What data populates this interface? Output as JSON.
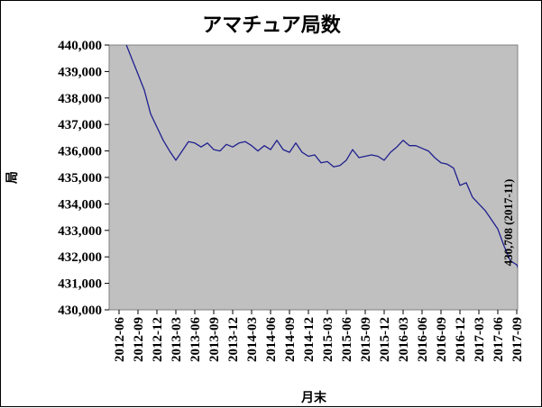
{
  "chart_data": {
    "type": "line",
    "title": "アマチュア局数",
    "xlabel": "月末",
    "ylabel": "局",
    "ylim": [
      430000,
      440000
    ],
    "yticks": [
      430000,
      431000,
      432000,
      433000,
      434000,
      435000,
      436000,
      437000,
      438000,
      439000,
      440000
    ],
    "ytick_labels": [
      "430,000",
      "431,000",
      "432,000",
      "433,000",
      "434,000",
      "435,000",
      "436,000",
      "437,000",
      "438,000",
      "439,000",
      "440,000"
    ],
    "xtick_labels": [
      "2012-06",
      "2012-09",
      "2012-12",
      "2013-03",
      "2013-06",
      "2013-09",
      "2013-12",
      "2014-03",
      "2014-06",
      "2014-09",
      "2014-12",
      "2015-03",
      "2015-06",
      "2015-09",
      "2015-12",
      "2016-03",
      "2016-06",
      "2016-09",
      "2016-12",
      "2017-03",
      "2017-06",
      "2017-09"
    ],
    "grid": false,
    "legend": "none",
    "plot_background": "#c0c0c0",
    "line_color": "#1f1f8f",
    "annotation": "430,708 (2017-11)",
    "series": [
      {
        "x": [
          "2012-06",
          "2012-07",
          "2012-08",
          "2012-09",
          "2012-10",
          "2012-11",
          "2012-12",
          "2013-01",
          "2013-02",
          "2013-03",
          "2013-04",
          "2013-05",
          "2013-06",
          "2013-07",
          "2013-08",
          "2013-09",
          "2013-10",
          "2013-11",
          "2013-12",
          "2014-01",
          "2014-02",
          "2014-03",
          "2014-04",
          "2014-05",
          "2014-06",
          "2014-07",
          "2014-08",
          "2014-09",
          "2014-10",
          "2014-11",
          "2014-12",
          "2015-01",
          "2015-02",
          "2015-03",
          "2015-04",
          "2015-05",
          "2015-06",
          "2015-07",
          "2015-08",
          "2015-09",
          "2015-10",
          "2015-11",
          "2015-12",
          "2016-01",
          "2016-02",
          "2016-03",
          "2016-04",
          "2016-05",
          "2016-06",
          "2016-07",
          "2016-08",
          "2016-09",
          "2016-10",
          "2016-11",
          "2016-12",
          "2017-01",
          "2017-02",
          "2017-03",
          "2017-04",
          "2017-05",
          "2017-06",
          "2017-07",
          "2017-08",
          "2017-09",
          "2017-10",
          "2017-11"
        ],
        "values": [
          440500,
          440100,
          439500,
          438900,
          438300,
          437400,
          436900,
          436400,
          436000,
          435650,
          436000,
          436350,
          436300,
          436150,
          436300,
          436050,
          436000,
          436250,
          436150,
          436300,
          436350,
          436200,
          436000,
          436200,
          436050,
          436400,
          436050,
          435950,
          436300,
          435950,
          435800,
          435850,
          435550,
          435600,
          435400,
          435450,
          435650,
          436050,
          435750,
          435800,
          435850,
          435800,
          435650,
          435950,
          436150,
          436400,
          436200,
          436200,
          436100,
          436000,
          435750,
          435550,
          435500,
          435350,
          434700,
          434800,
          434250,
          434000,
          433750,
          433400,
          433050,
          432400,
          431850,
          431700,
          431100,
          430708
        ]
      }
    ]
  }
}
